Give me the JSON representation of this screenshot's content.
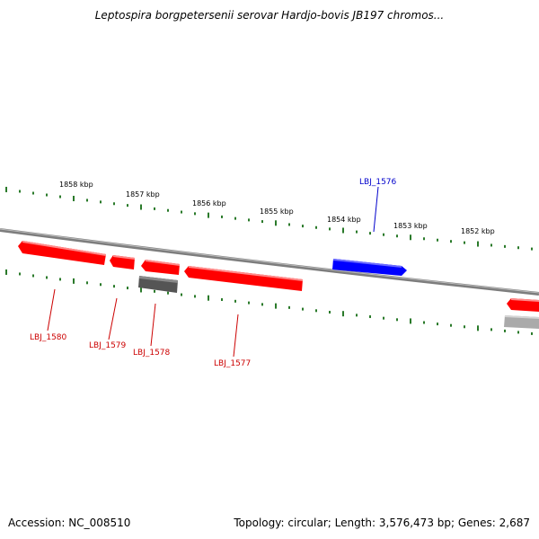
{
  "title": "Leptospira borgpetersenii serovar Hardjo-bovis JB197 chromos...",
  "footer": {
    "accession": "Accession: NC_008510",
    "topology": "Topology: circular; Length: 3,576,473 bp; Genes: 2,687"
  },
  "colors": {
    "backbone": "#888888",
    "tick": "#2a7a2a",
    "gene_red": "#ff0000",
    "gene_blue": "#0000ff",
    "gene_dark_gray": "#555555",
    "gene_light_gray": "#aaaaaa",
    "label_red": "#cc0000",
    "label_blue": "#0000cc"
  },
  "kbp_labels": [
    "1858 kbp",
    "1857 kbp",
    "1856 kbp",
    "1855 kbp",
    "1854 kbp",
    "1853 kbp",
    "1852 kbp"
  ],
  "genes": [
    {
      "name": "LBJ_1580",
      "color": "red",
      "label": "LBJ_1580"
    },
    {
      "name": "LBJ_1579",
      "color": "red",
      "label": "LBJ_1579"
    },
    {
      "name": "LBJ_1578",
      "color": "dark_gray",
      "label": "LBJ_1578"
    },
    {
      "name": "LBJ_1577",
      "color": "red",
      "label": "LBJ_1577"
    },
    {
      "name": "LBJ_1576",
      "color": "blue",
      "label": "LBJ_1576"
    }
  ]
}
